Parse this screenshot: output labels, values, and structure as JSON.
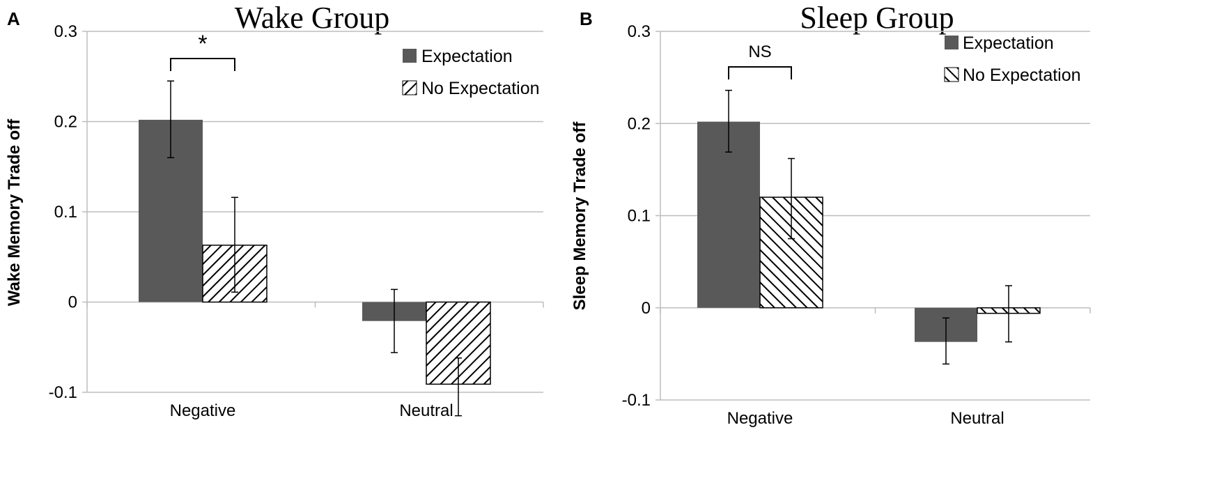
{
  "colors": {
    "expectation": "#595959",
    "stroke": "#000000",
    "grid": "#bdbdbd"
  },
  "chart_data": [
    {
      "type": "bar",
      "panel": "A",
      "title": "Wake Group",
      "xlabel": "",
      "ylabel": "Wake Memory Trade off",
      "ylim": [
        -0.1,
        0.3
      ],
      "yticks": [
        "-0.1",
        "0",
        "0.1",
        "0.2",
        "0.3"
      ],
      "grid": true,
      "legend_position": "top-right",
      "categories": [
        "Negative",
        "Neutral"
      ],
      "series": [
        {
          "name": "Expectation",
          "style": "solid",
          "values": [
            0.202,
            -0.021
          ],
          "error_low": [
            0.16,
            -0.056
          ],
          "error_high": [
            0.245,
            0.014
          ]
        },
        {
          "name": "No Expectation",
          "style": "hatched",
          "values": [
            0.063,
            -0.091
          ],
          "error_low": [
            0.011,
            -0.126
          ],
          "error_high": [
            0.116,
            -0.062
          ]
        }
      ],
      "annotation": {
        "text": "*",
        "category": "Negative"
      }
    },
    {
      "type": "bar",
      "panel": "B",
      "title": "Sleep Group",
      "xlabel": "",
      "ylabel": "Sleep Memory Trade off",
      "ylim": [
        -0.1,
        0.3
      ],
      "yticks": [
        "-0.1",
        "0",
        "0.1",
        "0.2",
        "0.3"
      ],
      "grid": true,
      "legend_position": "top-right",
      "categories": [
        "Negative",
        "Neutral"
      ],
      "series": [
        {
          "name": "Expectation",
          "style": "solid",
          "values": [
            0.202,
            -0.037
          ],
          "error_low": [
            0.169,
            -0.061
          ],
          "error_high": [
            0.236,
            -0.011
          ]
        },
        {
          "name": "No Expectation",
          "style": "hatched",
          "values": [
            0.12,
            -0.006
          ],
          "error_low": [
            0.075,
            -0.037
          ],
          "error_high": [
            0.162,
            0.024
          ]
        }
      ],
      "annotation": {
        "text": "NS",
        "category": "Negative"
      }
    }
  ]
}
